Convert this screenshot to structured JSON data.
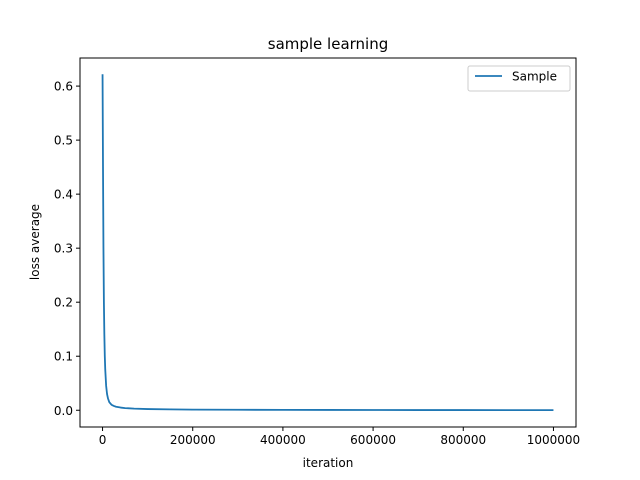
{
  "chart_data": {
    "type": "line",
    "title": "sample learning",
    "xlabel": "iteration",
    "ylabel": "loss average",
    "xlim": [
      -50000,
      1050000
    ],
    "ylim": [
      -0.031,
      0.652
    ],
    "xticks": [
      0,
      200000,
      400000,
      600000,
      800000,
      1000000
    ],
    "xtick_labels": [
      "0",
      "200000",
      "400000",
      "600000",
      "800000",
      "1000000"
    ],
    "yticks": [
      0.0,
      0.1,
      0.2,
      0.3,
      0.4,
      0.5,
      0.6
    ],
    "ytick_labels": [
      "0.0",
      "0.1",
      "0.2",
      "0.3",
      "0.4",
      "0.5",
      "0.6"
    ],
    "grid": false,
    "legend_position": "top-right",
    "series": [
      {
        "name": "Sample",
        "color": "#1f77b4",
        "x": [
          0,
          1000,
          2000,
          3000,
          4000,
          5000,
          6000,
          8000,
          10000,
          12000,
          15000,
          20000,
          25000,
          30000,
          40000,
          50000,
          70000,
          100000,
          150000,
          200000,
          300000,
          400000,
          500000,
          600000,
          700000,
          800000,
          900000,
          1000000
        ],
        "y": [
          0.622,
          0.45,
          0.3,
          0.2,
          0.14,
          0.1,
          0.075,
          0.045,
          0.03,
          0.022,
          0.015,
          0.01,
          0.008,
          0.0065,
          0.005,
          0.004,
          0.003,
          0.0022,
          0.0016,
          0.0012,
          0.0009,
          0.0007,
          0.0006,
          0.0005,
          0.0004,
          0.0004,
          0.0003,
          0.0003
        ]
      }
    ]
  }
}
